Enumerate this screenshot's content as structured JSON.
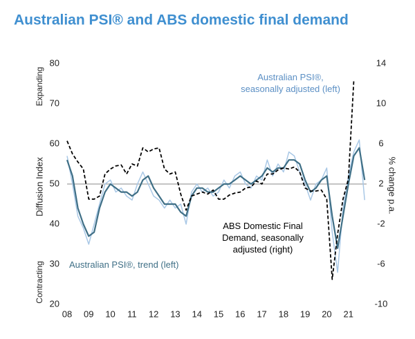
{
  "chart_data": {
    "type": "line",
    "title": "Australian PSI® and ABS domestic final demand",
    "ylabel": "Diffusion Index",
    "y2label": "% change p.a.",
    "annotations": [
      "Expanding",
      "Contracting"
    ],
    "xlim": [
      2008,
      2022
    ],
    "xticks": [
      {
        "value": 2008,
        "label": "08"
      },
      {
        "value": 2009,
        "label": "09"
      },
      {
        "value": 2010,
        "label": "10"
      },
      {
        "value": 2011,
        "label": "11"
      },
      {
        "value": 2012,
        "label": "12"
      },
      {
        "value": 2013,
        "label": "13"
      },
      {
        "value": 2014,
        "label": "14"
      },
      {
        "value": 2015,
        "label": "15"
      },
      {
        "value": 2016,
        "label": "16"
      },
      {
        "value": 2017,
        "label": "17"
      },
      {
        "value": 2018,
        "label": "18"
      },
      {
        "value": 2019,
        "label": "19"
      },
      {
        "value": 2020,
        "label": "20"
      },
      {
        "value": 2021,
        "label": "21"
      }
    ],
    "ylim": [
      20,
      80
    ],
    "yticks": [
      20,
      30,
      40,
      50,
      60,
      70,
      80
    ],
    "y2lim": [
      -10,
      14
    ],
    "y2ticks": [
      -10,
      -6,
      -2,
      2,
      6,
      10,
      14
    ],
    "hline": 50,
    "x": [
      2008,
      2008.25,
      2008.5,
      2008.75,
      2009,
      2009.25,
      2009.5,
      2009.75,
      2010,
      2010.25,
      2010.5,
      2010.75,
      2011,
      2011.25,
      2011.5,
      2011.75,
      2012,
      2012.25,
      2012.5,
      2012.75,
      2013,
      2013.25,
      2013.5,
      2013.75,
      2014,
      2014.25,
      2014.5,
      2014.75,
      2015,
      2015.25,
      2015.5,
      2015.75,
      2016,
      2016.25,
      2016.5,
      2016.75,
      2017,
      2017.25,
      2017.5,
      2017.75,
      2018,
      2018.25,
      2018.5,
      2018.75,
      2019,
      2019.25,
      2019.5,
      2019.75,
      2020,
      2020.25,
      2020.5,
      2020.75,
      2021,
      2021.25,
      2021.5,
      2021.75
    ],
    "series": [
      {
        "name": "Australian PSI®,\nseasonally adjusted (left)",
        "color": "#a9c8e6",
        "dash": false,
        "width": 1.5,
        "values": [
          57,
          50,
          42,
          39,
          35,
          40,
          45,
          50,
          51,
          48,
          49,
          47,
          46,
          50,
          53,
          50,
          47,
          46,
          44,
          46,
          44,
          45,
          40,
          48,
          50,
          48,
          49,
          47,
          48,
          51,
          49,
          52,
          53,
          50,
          49,
          52,
          51,
          56,
          52,
          55,
          53,
          58,
          57,
          53,
          50,
          46,
          50,
          51,
          54,
          38,
          28,
          44,
          52,
          58,
          61,
          46
        ]
      },
      {
        "name": "Australian PSI®, trend (left)",
        "color": "#3f6f86",
        "dash": false,
        "width": 2.2,
        "values": [
          56,
          52,
          44,
          40,
          37,
          38,
          44,
          48,
          50,
          49,
          48,
          48,
          47,
          48,
          51,
          52,
          49,
          47,
          45,
          45,
          45,
          43,
          42,
          47,
          49,
          49,
          48,
          48,
          49,
          50,
          50,
          51,
          52,
          51,
          50,
          51,
          52,
          54,
          53,
          54,
          54,
          56,
          56,
          55,
          51,
          48,
          49,
          51,
          52,
          42,
          34,
          42,
          50,
          57,
          59,
          51
        ]
      },
      {
        "name": "ABS Domestic Final\nDemand, seasonally\nadjusted (right)",
        "color": "#000000",
        "dash": true,
        "width": 1.8,
        "axis": "y2",
        "values": [
          6.3,
          5,
          4.2,
          3.5,
          0.5,
          0.5,
          0.8,
          3,
          3.5,
          3.8,
          3.9,
          3,
          4,
          3.8,
          5.6,
          5.2,
          5.5,
          5.6,
          3.5,
          3,
          3.2,
          1,
          -0.6,
          0.8,
          1,
          1.2,
          1,
          1.4,
          0.5,
          0.5,
          0.9,
          1.1,
          1.2,
          1.6,
          1.7,
          2.3,
          2,
          3,
          3,
          3.4,
          3.6,
          3.5,
          3.7,
          3.2,
          1.6,
          1.3,
          1.3,
          1.4,
          0.5,
          -7.5,
          -3,
          0.5,
          2.5,
          12.3,
          null,
          null
        ]
      }
    ]
  }
}
